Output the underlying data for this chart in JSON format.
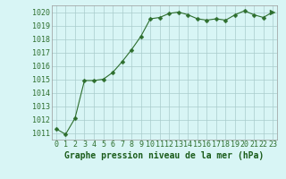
{
  "x": [
    0,
    1,
    2,
    3,
    4,
    5,
    6,
    7,
    8,
    9,
    10,
    11,
    12,
    13,
    14,
    15,
    16,
    17,
    18,
    19,
    20,
    21,
    22,
    23
  ],
  "y": [
    1011.3,
    1010.9,
    1012.1,
    1014.9,
    1014.9,
    1015.0,
    1015.5,
    1016.3,
    1017.2,
    1018.2,
    1019.5,
    1019.6,
    1019.9,
    1020.0,
    1019.8,
    1019.5,
    1019.4,
    1019.5,
    1019.4,
    1019.8,
    1020.1,
    1019.8,
    1019.6,
    1020.0
  ],
  "line_color": "#2d6e2d",
  "marker": "D",
  "marker_size": 2.5,
  "bg_color": "#d8f5f5",
  "grid_color": "#aacccc",
  "xlabel": "Graphe pression niveau de la mer (hPa)",
  "xlabel_color": "#1a5c1a",
  "xlabel_fontsize": 7,
  "tick_label_color": "#2d6e2d",
  "tick_fontsize": 6,
  "ylim": [
    1010.5,
    1020.5
  ],
  "yticks": [
    1011,
    1012,
    1013,
    1014,
    1015,
    1016,
    1017,
    1018,
    1019,
    1020
  ],
  "xlim": [
    -0.5,
    23.5
  ],
  "xticks": [
    0,
    1,
    2,
    3,
    4,
    5,
    6,
    7,
    8,
    9,
    10,
    11,
    12,
    13,
    14,
    15,
    16,
    17,
    18,
    19,
    20,
    21,
    22,
    23
  ]
}
